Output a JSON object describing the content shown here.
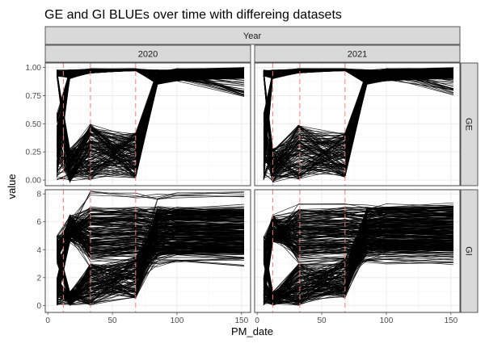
{
  "chart_data": {
    "type": "line",
    "title": "GE and GI BLUEs over time with differeing datasets",
    "xlabel": "PM_date",
    "ylabel": "value",
    "facet_col_title": "Year",
    "facet_cols": [
      "2020",
      "2021"
    ],
    "facet_rows": [
      "GE",
      "GI"
    ],
    "xlim": [
      -2,
      157
    ],
    "x_ticks": [
      0,
      50,
      100,
      150
    ],
    "x_tick_labels": [
      "0",
      "50",
      "100",
      "150"
    ],
    "grid": true,
    "panels": [
      {
        "row": "GE",
        "ylim": [
          -0.05,
          1.04
        ],
        "y_ticks": [
          0,
          0.25,
          0.5,
          0.75,
          1.0
        ],
        "y_tick_labels": [
          "0.00",
          "0.25",
          "0.50",
          "0.75",
          "1.00"
        ],
        "columns": {
          "2020": {
            "x": [
              7,
              17,
              33,
              68,
              85,
              100,
              152
            ],
            "start_low": 0.0,
            "end_range": [
              0.74,
              1.0
            ],
            "n_lines": 320
          },
          "2021": {
            "x": [
              5,
              12,
              32,
              68,
              85,
              100,
              152
            ],
            "start_low": 0.0,
            "end_range": [
              0.75,
              1.0
            ],
            "n_lines": 320
          }
        }
      },
      {
        "row": "GI",
        "ylim": [
          -0.5,
          8.3
        ],
        "y_ticks": [
          0,
          2,
          4,
          6,
          8
        ],
        "y_tick_labels": [
          "0",
          "2",
          "4",
          "6",
          "8"
        ],
        "columns": {
          "2020": {
            "x": [
              7,
              17,
              33,
              68,
              85,
              100,
              152
            ],
            "start_low": 0.0,
            "end_range": [
              3.0,
              7.9
            ],
            "n_lines": 320
          },
          "2021": {
            "x": [
              5,
              12,
              32,
              68,
              85,
              100,
              152
            ],
            "start_low": 0.0,
            "end_range": [
              3.0,
              7.2
            ],
            "n_lines": 320
          }
        }
      }
    ],
    "reference_lines": {
      "2020": [
        12,
        33,
        68
      ],
      "2021": [
        12,
        33,
        68
      ]
    },
    "colors": {
      "lines": "#000000",
      "reference": "#e8807a",
      "strip_fill": "#d9d9d9",
      "strip_border": "#333333",
      "grid_major": "#ebebeb",
      "grid_minor": "#f5f5f5",
      "panel_border": "#333333",
      "text": "#1a1a1a",
      "tick_text": "#4d4d4d"
    }
  }
}
